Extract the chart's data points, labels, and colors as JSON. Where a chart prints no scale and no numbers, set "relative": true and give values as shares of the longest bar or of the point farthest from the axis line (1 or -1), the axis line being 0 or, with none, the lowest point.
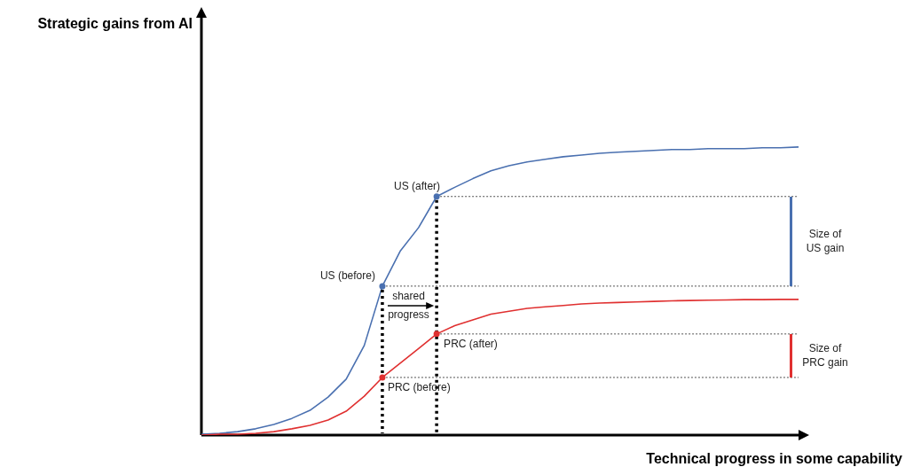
{
  "chart_data": {
    "type": "line",
    "relative": true,
    "xlabel": "Technical progress in some capability",
    "categories": [
      null,
      null,
      null,
      null,
      null,
      null,
      null,
      null,
      null,
      null,
      null,
      null,
      null,
      null,
      null,
      null,
      null,
      null,
      null,
      null,
      null,
      null,
      null,
      null,
      null,
      null,
      null,
      null,
      null,
      null,
      null,
      null,
      null,
      null
    ],
    "series": [
      {
        "color": "#4a70b0",
        "values": [
          0.003,
          0.006,
          0.012,
          0.022,
          0.037,
          0.058,
          0.086,
          0.132,
          0.194,
          0.311,
          0.517,
          0.64,
          0.72,
          0.828,
          0.86,
          0.89,
          0.917,
          0.935,
          0.948,
          0.957,
          0.966,
          0.972,
          0.978,
          0.982,
          0.985,
          0.988,
          0.991,
          0.991,
          0.994,
          0.994,
          0.994,
          0.997,
          0.997,
          1
        ]
      },
      {
        "color": "#e03030",
        "values": [
          0,
          0.003,
          0.003,
          0.006,
          0.012,
          0.022,
          0.034,
          0.052,
          0.083,
          0.135,
          0.2,
          0.25,
          0.3,
          0.351,
          0.38,
          0.4,
          0.42,
          0.43,
          0.44,
          0.445,
          0.45,
          0.455,
          0.458,
          0.46,
          0.462,
          0.464,
          0.466,
          0.467,
          0.468,
          0.469,
          0.47,
          0.47,
          0.471,
          0.471
        ]
      }
    ],
    "ref_lines": [
      {
        "axis": "y",
        "value": 0.828,
        "label": "US (after)",
        "color": "#505050",
        "line_style": "dotted"
      },
      {
        "axis": "y",
        "value": 0.517,
        "label": "US (before)",
        "color": "#505050",
        "line_style": "dotted"
      },
      {
        "axis": "y",
        "value": 0.351,
        "label": "PRC (after)",
        "color": "#505050",
        "line_style": "dotted"
      },
      {
        "axis": "y",
        "value": 0.2,
        "label": "PRC (before)",
        "color": "#505050",
        "line_style": "dotted"
      }
    ],
    "annotations": [
      "shared progress",
      "Size of US gain",
      "Size of PRC gain",
      "Strategic gains from AI"
    ]
  }
}
